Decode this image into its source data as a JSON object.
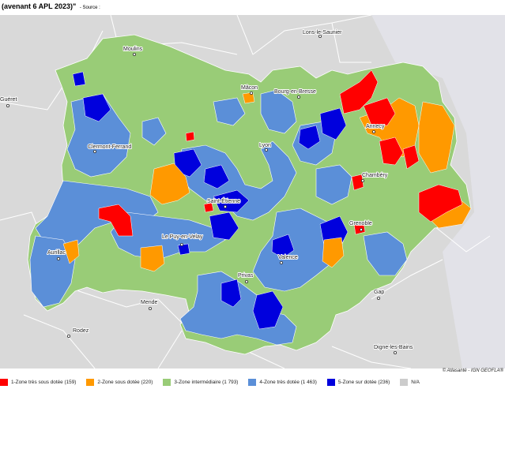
{
  "header": {
    "title": "(avenant 6 APL 2023)\"",
    "source_label": "- Source :"
  },
  "map": {
    "region": "Auvergne-Rhône-Alpes",
    "colors": {
      "zone1": "#ff0000",
      "zone2": "#ff9900",
      "zone3": "#99cc77",
      "zone4": "#5b8fd8",
      "zone5": "#0000dd",
      "na": "#cccccc",
      "outside": "#d9d9d9",
      "switzerland": "#e2e2e8"
    },
    "places": {
      "lons": "Lons-le-Saunier",
      "moulins": "Moulins",
      "gueret": "Guéret",
      "macon": "Mâcon",
      "bourg": "Bourg-en-Bresse",
      "annecy": "Annecy",
      "clermont": "Clermont-Ferrand",
      "lyon": "Lyon",
      "chambery": "Chambéry",
      "saint_etienne": "Saint-Étienne",
      "grenoble": "Grenoble",
      "le_puy": "Le Puy-en-Velay",
      "aurillac": "Aurillac",
      "valence": "Valence",
      "privas": "Privas",
      "gap": "Gap",
      "mende": "Mende",
      "rodez": "Rodez",
      "digne": "Digne-les-Bains"
    }
  },
  "attribution": "© Atlasanté - IGN GEOFLA®",
  "legend": [
    {
      "label": "1-Zone très sous dotée (159)",
      "color": "#ff0000"
    },
    {
      "label": "2-Zone sous dotée (220)",
      "color": "#ff9900"
    },
    {
      "label": "3-Zone intermédiaire (1 793)",
      "color": "#99cc77"
    },
    {
      "label": "4-Zone très dotée (1 463)",
      "color": "#5b8fd8"
    },
    {
      "label": "5-Zone sur dotée (236)",
      "color": "#0000dd"
    },
    {
      "label": "N/A",
      "color": "#cccccc"
    }
  ]
}
